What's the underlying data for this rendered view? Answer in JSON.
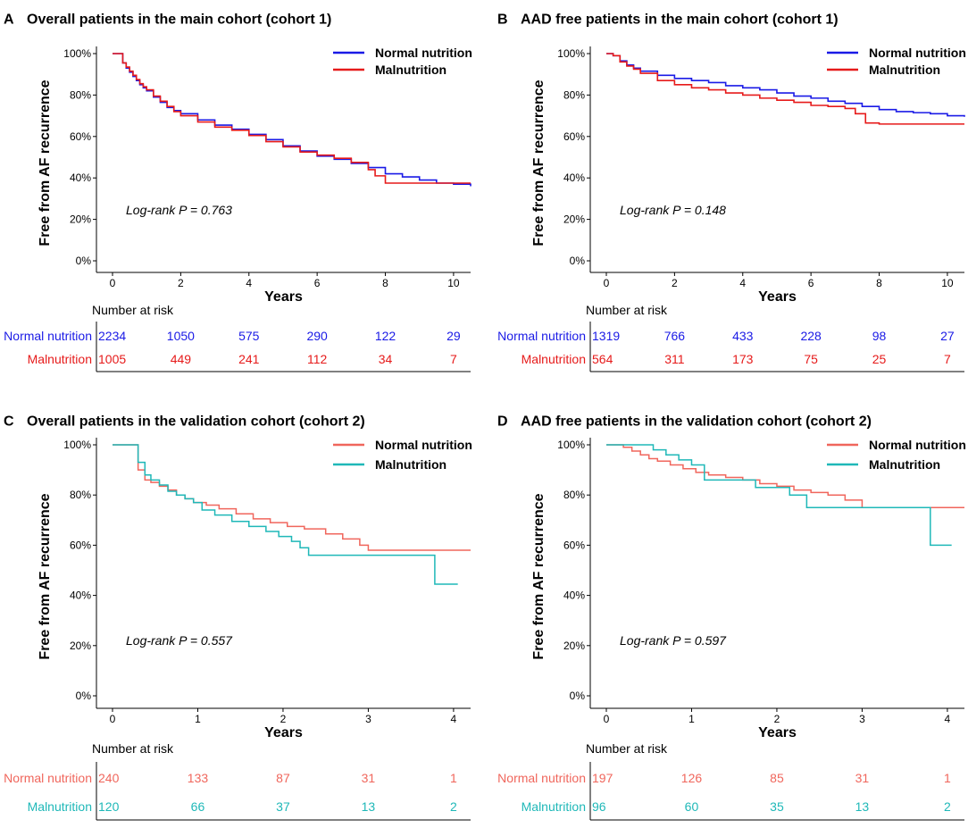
{
  "colors": {
    "cohort1_normal": "#1a1ae6",
    "cohort1_mal": "#e61a1a",
    "cohort2_normal": "#f0665c",
    "cohort2_mal": "#1fb8b8"
  },
  "chart_data": [
    {
      "type": "line",
      "panel": "A",
      "title": "Overall patients in the main cohort (cohort 1)",
      "xlabel": "Years",
      "ylabel": "Free from AF recurrence",
      "xlim": [
        0,
        10.5
      ],
      "ylim": [
        0,
        1
      ],
      "xticks": [
        0,
        2,
        4,
        6,
        8,
        10
      ],
      "yticks": [
        0,
        0.2,
        0.4,
        0.6,
        0.8,
        1.0
      ],
      "ytick_labels": [
        "0%",
        "20%",
        "40%",
        "60%",
        "80%",
        "100%"
      ],
      "annotation": "Log-rank P = 0.763",
      "risk_title": "Number at risk",
      "series": [
        {
          "name": "Normal nutrition",
          "color_key": "cohort1_normal",
          "x": [
            0,
            0.2,
            0.3,
            0.4,
            0.5,
            0.6,
            0.7,
            0.8,
            0.9,
            1.0,
            1.2,
            1.4,
            1.6,
            1.8,
            2.0,
            2.5,
            3.0,
            3.5,
            4.0,
            4.5,
            5.0,
            5.5,
            6.0,
            6.5,
            7.0,
            7.5,
            8.0,
            8.5,
            9.0,
            9.5,
            10.0,
            10.5
          ],
          "y": [
            1.0,
            1.0,
            0.955,
            0.93,
            0.91,
            0.89,
            0.87,
            0.85,
            0.835,
            0.82,
            0.79,
            0.765,
            0.74,
            0.725,
            0.71,
            0.68,
            0.655,
            0.635,
            0.61,
            0.585,
            0.555,
            0.53,
            0.505,
            0.49,
            0.47,
            0.45,
            0.42,
            0.405,
            0.39,
            0.375,
            0.37,
            0.36
          ],
          "risk": [
            2234,
            1050,
            575,
            290,
            122,
            29
          ]
        },
        {
          "name": "Malnutrition",
          "color_key": "cohort1_mal",
          "x": [
            0,
            0.2,
            0.3,
            0.4,
            0.5,
            0.6,
            0.7,
            0.8,
            0.9,
            1.0,
            1.2,
            1.4,
            1.6,
            1.8,
            2.0,
            2.5,
            3.0,
            3.5,
            4.0,
            4.5,
            5.0,
            5.5,
            6.0,
            6.5,
            7.0,
            7.5,
            7.7,
            8.0,
            9.0,
            10.0,
            10.5
          ],
          "y": [
            1.0,
            1.0,
            0.955,
            0.935,
            0.915,
            0.895,
            0.875,
            0.855,
            0.84,
            0.825,
            0.795,
            0.77,
            0.745,
            0.72,
            0.7,
            0.67,
            0.645,
            0.63,
            0.605,
            0.575,
            0.55,
            0.525,
            0.51,
            0.495,
            0.475,
            0.44,
            0.41,
            0.375,
            0.375,
            0.375,
            0.375
          ],
          "risk": [
            1005,
            449,
            241,
            112,
            34,
            7
          ]
        }
      ]
    },
    {
      "type": "line",
      "panel": "B",
      "title": "AAD free patients in the main cohort (cohort 1)",
      "xlabel": "Years",
      "ylabel": "Free from AF recurrence",
      "xlim": [
        0,
        10.5
      ],
      "ylim": [
        0,
        1
      ],
      "xticks": [
        0,
        2,
        4,
        6,
        8,
        10
      ],
      "yticks": [
        0,
        0.2,
        0.4,
        0.6,
        0.8,
        1.0
      ],
      "ytick_labels": [
        "0%",
        "20%",
        "40%",
        "60%",
        "80%",
        "100%"
      ],
      "annotation": "Log-rank P = 0.148",
      "risk_title": "Number at risk",
      "series": [
        {
          "name": "Normal nutrition",
          "color_key": "cohort1_normal",
          "x": [
            0,
            0.2,
            0.4,
            0.6,
            0.8,
            1.0,
            1.5,
            2.0,
            2.5,
            3.0,
            3.5,
            4.0,
            4.5,
            5.0,
            5.5,
            6.0,
            6.5,
            7.0,
            7.5,
            8.0,
            8.5,
            9.0,
            9.5,
            10.0,
            10.5
          ],
          "y": [
            1.0,
            0.99,
            0.965,
            0.945,
            0.93,
            0.915,
            0.895,
            0.88,
            0.87,
            0.86,
            0.845,
            0.835,
            0.825,
            0.81,
            0.795,
            0.785,
            0.77,
            0.76,
            0.745,
            0.73,
            0.72,
            0.715,
            0.71,
            0.7,
            0.695
          ],
          "risk": [
            1319,
            766,
            433,
            228,
            98,
            27
          ]
        },
        {
          "name": "Malnutrition",
          "color_key": "cohort1_mal",
          "x": [
            0,
            0.2,
            0.4,
            0.6,
            0.8,
            1.0,
            1.5,
            2.0,
            2.5,
            3.0,
            3.5,
            4.0,
            4.5,
            5.0,
            5.5,
            6.0,
            6.5,
            7.0,
            7.3,
            7.6,
            8.0,
            9.0,
            10.0,
            10.5
          ],
          "y": [
            1.0,
            0.99,
            0.96,
            0.94,
            0.925,
            0.905,
            0.87,
            0.85,
            0.835,
            0.825,
            0.81,
            0.8,
            0.785,
            0.775,
            0.765,
            0.75,
            0.745,
            0.735,
            0.71,
            0.665,
            0.66,
            0.66,
            0.66,
            0.66
          ],
          "risk": [
            564,
            311,
            173,
            75,
            25,
            7
          ]
        }
      ]
    },
    {
      "type": "line",
      "panel": "C",
      "title": "Overall patients in the validation cohort (cohort 2)",
      "xlabel": "Years",
      "ylabel": "Free from AF recurrence",
      "xlim": [
        0,
        4.2
      ],
      "ylim": [
        0,
        1
      ],
      "xticks": [
        0,
        1,
        2,
        3,
        4
      ],
      "yticks": [
        0,
        0.2,
        0.4,
        0.6,
        0.8,
        1.0
      ],
      "ytick_labels": [
        "0%",
        "20%",
        "40%",
        "60%",
        "80%",
        "100%"
      ],
      "annotation": "Log-rank P = 0.557",
      "risk_title": "Number at risk",
      "series": [
        {
          "name": "Normal nutrition",
          "color_key": "cohort2_normal",
          "x": [
            0,
            0.25,
            0.3,
            0.38,
            0.45,
            0.55,
            0.65,
            0.75,
            0.85,
            0.95,
            1.1,
            1.25,
            1.45,
            1.65,
            1.85,
            2.05,
            2.25,
            2.5,
            2.7,
            2.9,
            3.0,
            4.2
          ],
          "y": [
            1.0,
            1.0,
            0.9,
            0.86,
            0.85,
            0.835,
            0.82,
            0.8,
            0.785,
            0.77,
            0.76,
            0.745,
            0.725,
            0.705,
            0.69,
            0.675,
            0.665,
            0.645,
            0.625,
            0.6,
            0.58,
            0.58
          ],
          "risk": [
            240,
            133,
            87,
            31,
            1
          ]
        },
        {
          "name": "Malnutrition",
          "color_key": "cohort2_mal",
          "x": [
            0,
            0.25,
            0.3,
            0.38,
            0.45,
            0.55,
            0.65,
            0.75,
            0.85,
            0.95,
            1.05,
            1.2,
            1.4,
            1.6,
            1.8,
            1.95,
            2.1,
            2.2,
            2.3,
            3.2,
            3.75,
            3.78,
            4.05
          ],
          "y": [
            1.0,
            1.0,
            0.93,
            0.88,
            0.86,
            0.84,
            0.815,
            0.8,
            0.785,
            0.77,
            0.74,
            0.72,
            0.695,
            0.675,
            0.655,
            0.635,
            0.615,
            0.59,
            0.56,
            0.56,
            0.56,
            0.445,
            0.445
          ],
          "risk": [
            120,
            66,
            37,
            13,
            2
          ]
        }
      ]
    },
    {
      "type": "line",
      "panel": "D",
      "title": "AAD free patients in the validation cohort (cohort 2)",
      "xlabel": "Years",
      "ylabel": "Free from AF recurrence",
      "xlim": [
        0,
        4.2
      ],
      "ylim": [
        0,
        1
      ],
      "xticks": [
        0,
        1,
        2,
        3,
        4
      ],
      "yticks": [
        0,
        0.2,
        0.4,
        0.6,
        0.8,
        1.0
      ],
      "ytick_labels": [
        "0%",
        "20%",
        "40%",
        "60%",
        "80%",
        "100%"
      ],
      "annotation": "Log-rank P = 0.597",
      "risk_title": "Number at risk",
      "series": [
        {
          "name": "Normal nutrition",
          "color_key": "cohort2_normal",
          "x": [
            0,
            0.2,
            0.3,
            0.4,
            0.5,
            0.6,
            0.75,
            0.9,
            1.05,
            1.2,
            1.4,
            1.6,
            1.8,
            2.0,
            2.2,
            2.4,
            2.6,
            2.8,
            3.0,
            4.2
          ],
          "y": [
            1.0,
            0.99,
            0.975,
            0.96,
            0.945,
            0.935,
            0.92,
            0.905,
            0.89,
            0.88,
            0.87,
            0.86,
            0.845,
            0.835,
            0.82,
            0.81,
            0.8,
            0.78,
            0.75,
            0.75
          ],
          "risk": [
            197,
            126,
            85,
            31,
            1
          ]
        },
        {
          "name": "Malnutrition",
          "color_key": "cohort2_mal",
          "x": [
            0,
            0.4,
            0.55,
            0.7,
            0.85,
            1.0,
            1.15,
            1.5,
            1.75,
            2.0,
            2.15,
            2.35,
            3.0,
            3.78,
            3.8,
            4.05
          ],
          "y": [
            1.0,
            1.0,
            0.98,
            0.96,
            0.94,
            0.92,
            0.86,
            0.86,
            0.83,
            0.83,
            0.8,
            0.75,
            0.75,
            0.75,
            0.6,
            0.6
          ],
          "risk": [
            96,
            60,
            35,
            13,
            2
          ]
        }
      ]
    }
  ]
}
